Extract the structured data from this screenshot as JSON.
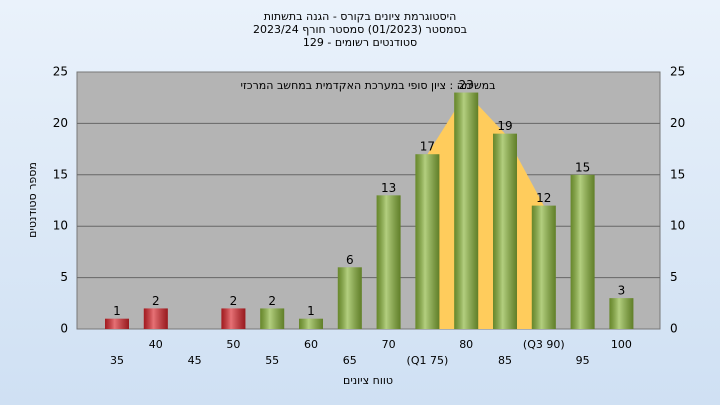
{
  "chart_data": {
    "type": "bar",
    "title": [
      "היסטוגרמת ציונים בקורס - הגנה בתשתות",
      "בסמסטר  (01/2023)  סמסטר חורף 2023/24",
      "סטודנטים רשומים - 129"
    ],
    "annotation": "במשימה : ציון סופי במערכת האקדמית במחשב המרכזי",
    "x_label": "טווח ציונים",
    "y_label": "מספר סטודנטים",
    "categories": [
      "35",
      "40",
      "45",
      "50",
      "55",
      "60",
      "65",
      "70",
      "(Q1 75)",
      "80",
      "85",
      "(Q3 90)",
      "95",
      "100"
    ],
    "values": [
      1,
      2,
      null,
      2,
      2,
      1,
      6,
      13,
      17,
      23,
      19,
      12,
      15,
      3
    ],
    "colors": [
      "#d9252b",
      "#d9252b",
      "#d9252b",
      "#d9252b",
      "#8ab53a",
      "#8ab53a",
      "#8ab53a",
      "#8ab53a",
      "#8ab53a",
      "#8ab53a",
      "#8ab53a",
      "#8ab53a",
      "#8ab53a",
      "#8ab53a"
    ],
    "quartile_area_color": "#ffcc5c",
    "ylim": [
      0,
      25
    ],
    "yticks": [
      0,
      5,
      10,
      15,
      20,
      25
    ],
    "grid": true
  }
}
